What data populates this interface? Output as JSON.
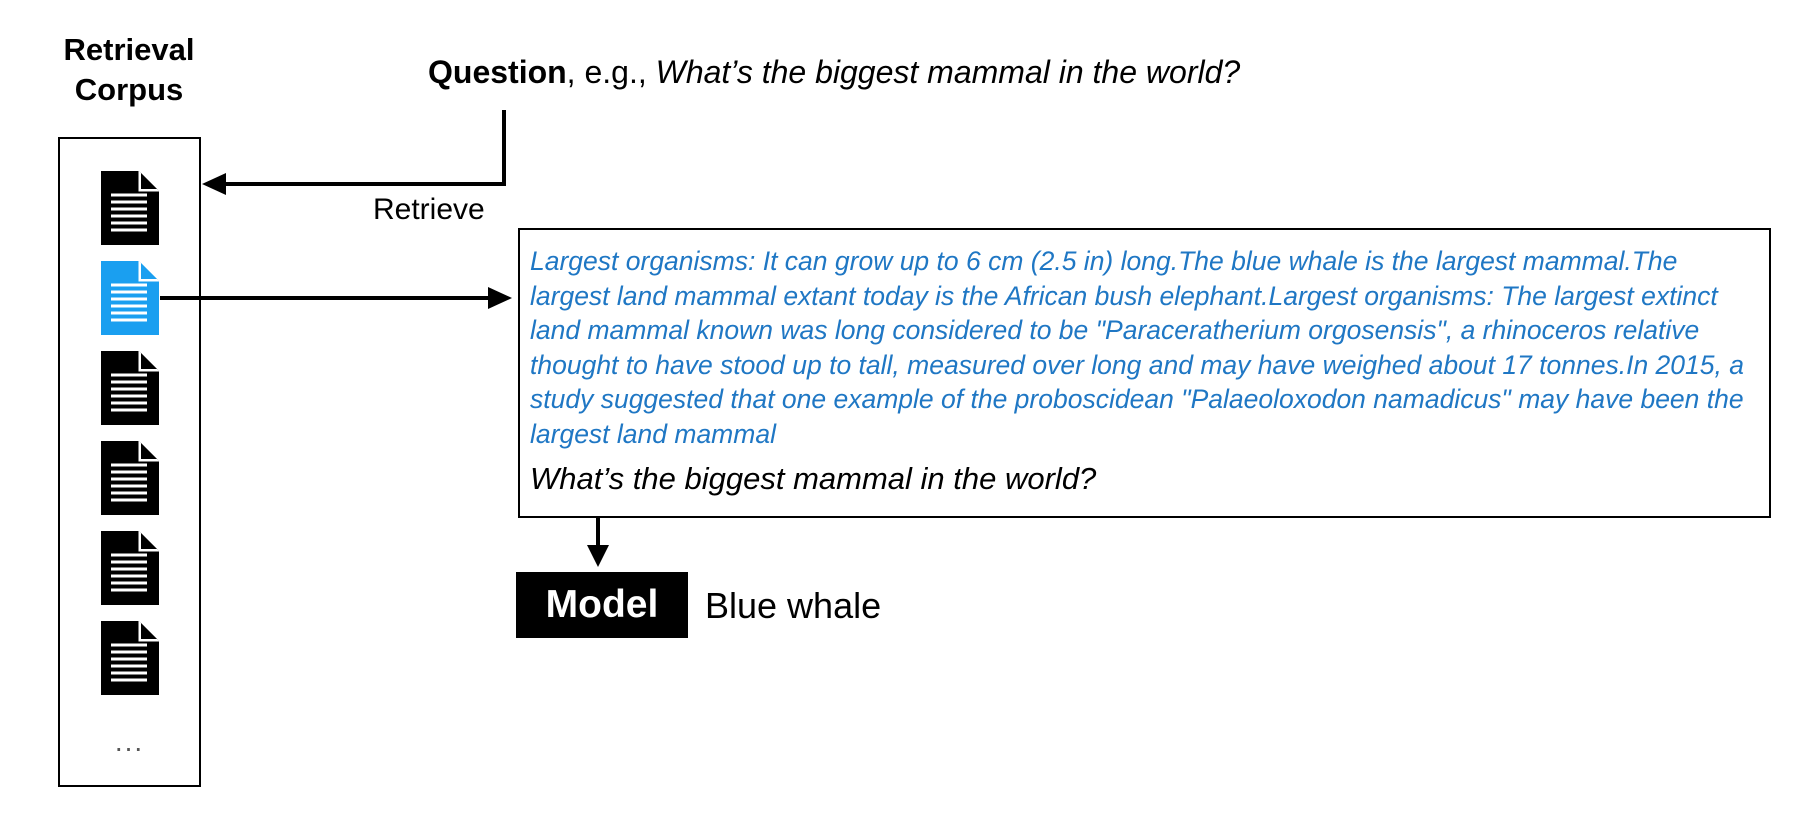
{
  "corpus": {
    "title_line1": "Retrieval",
    "title_line2": "Corpus",
    "ellipsis": "...",
    "documents": [
      {
        "icon": "document-icon",
        "color": "#000000",
        "highlighted": false
      },
      {
        "icon": "document-icon",
        "color": "#1a9ff0",
        "highlighted": true
      },
      {
        "icon": "document-icon",
        "color": "#000000",
        "highlighted": false
      },
      {
        "icon": "document-icon",
        "color": "#000000",
        "highlighted": false
      },
      {
        "icon": "document-icon",
        "color": "#000000",
        "highlighted": false
      },
      {
        "icon": "document-icon",
        "color": "#000000",
        "highlighted": false
      }
    ]
  },
  "question": {
    "label": "Question",
    "separator": ", e.g., ",
    "example": "What’s the biggest mammal in the world?"
  },
  "retrieve_label": "Retrieve",
  "prompt": {
    "passage": "Largest organisms: It can grow up to 6 cm (2.5 in) long.The blue whale is the largest mammal.The largest land mammal extant today is the African bush elephant.Largest organisms: The largest extinct land mammal known was long considered to be \"Paraceratherium orgosensis\", a rhinoceros relative thought to have stood up to tall, measured over long and may have weighed about 17 tonnes.In 2015, a study suggested that one example of the proboscidean \"Palaeoloxodon namadicus\" may have been the largest land mammal",
    "question": "What’s the biggest mammal in the world?"
  },
  "model": {
    "label": "Model",
    "answer": "Blue whale"
  },
  "colors": {
    "passage_text": "#1f77c4",
    "highlighted_document": "#1a9ff0",
    "default_document": "#000000"
  }
}
